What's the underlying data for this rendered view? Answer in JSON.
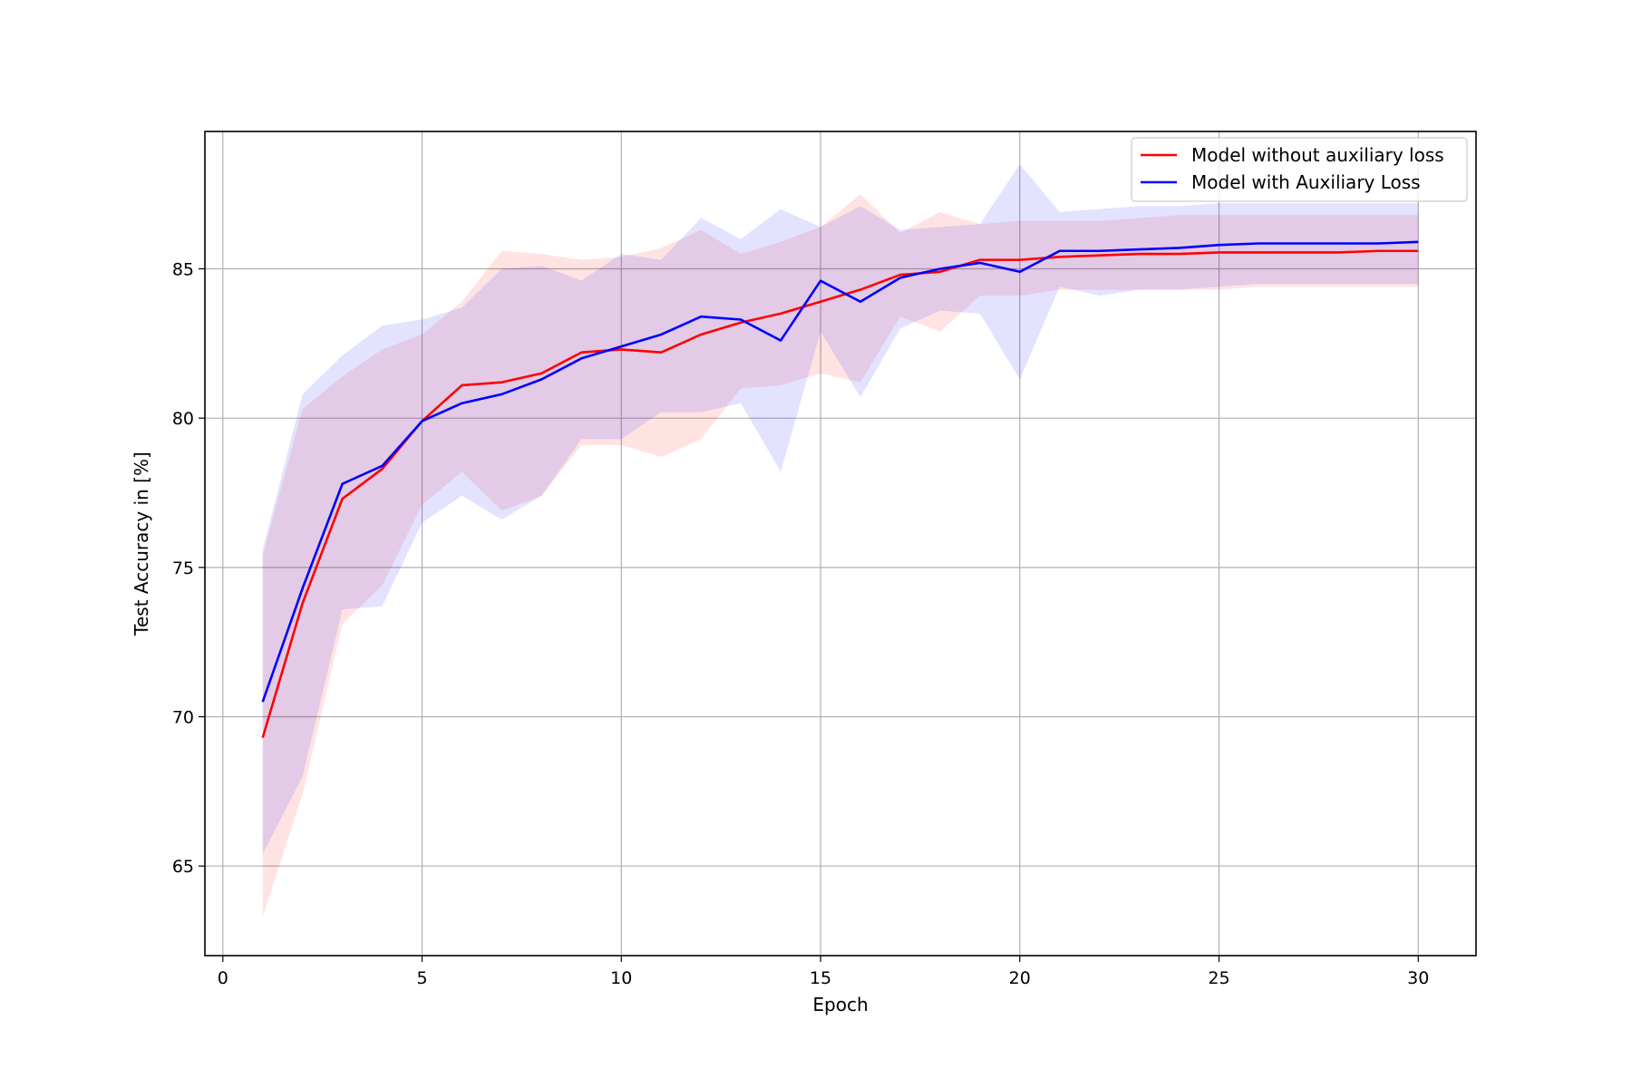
{
  "chart_data": {
    "type": "line",
    "title": "",
    "xlabel": "Epoch",
    "ylabel": "Test Accuracy in [%]",
    "xlim": [
      -0.45,
      31.45
    ],
    "ylim": [
      62.0,
      89.6
    ],
    "xticks": [
      0,
      5,
      10,
      15,
      20,
      25,
      30
    ],
    "yticks": [
      65,
      70,
      75,
      80,
      85
    ],
    "grid": true,
    "legend_position": "top-right",
    "x": [
      1,
      2,
      3,
      4,
      5,
      6,
      7,
      8,
      9,
      10,
      11,
      12,
      13,
      14,
      15,
      16,
      17,
      18,
      19,
      20,
      21,
      22,
      23,
      24,
      25,
      26,
      27,
      28,
      29,
      30
    ],
    "series": [
      {
        "name": "Model without auxiliary loss",
        "color": "#ff0000",
        "band_color": "#ff0000",
        "values": [
          69.3,
          73.8,
          77.3,
          78.3,
          79.9,
          81.1,
          81.2,
          81.5,
          82.2,
          82.3,
          82.2,
          82.8,
          83.2,
          83.5,
          83.9,
          84.3,
          84.8,
          84.9,
          85.3,
          85.3,
          85.4,
          85.45,
          85.5,
          85.5,
          85.55,
          85.55,
          85.55,
          85.55,
          85.6,
          85.6
        ],
        "upper": [
          75.4,
          80.3,
          81.4,
          82.3,
          82.8,
          83.9,
          85.6,
          85.5,
          85.3,
          85.4,
          85.7,
          86.3,
          85.5,
          85.9,
          86.4,
          87.5,
          86.2,
          86.9,
          86.5,
          86.6,
          86.6,
          86.6,
          86.7,
          86.8,
          86.8,
          86.8,
          86.8,
          86.8,
          86.8,
          86.8
        ],
        "lower": [
          63.3,
          67.4,
          73.1,
          74.4,
          77.1,
          78.2,
          76.9,
          77.4,
          79.1,
          79.1,
          78.7,
          79.3,
          81.0,
          81.1,
          81.5,
          81.2,
          83.4,
          82.9,
          84.1,
          84.1,
          84.3,
          84.3,
          84.3,
          84.3,
          84.3,
          84.4,
          84.4,
          84.4,
          84.4,
          84.4
        ]
      },
      {
        "name": "Model with Auxiliary Loss",
        "color": "#0000ff",
        "band_color": "#0000ff",
        "values": [
          70.5,
          74.3,
          77.8,
          78.4,
          79.9,
          80.5,
          80.8,
          81.3,
          82.0,
          82.4,
          82.8,
          83.4,
          83.3,
          82.6,
          84.6,
          83.9,
          84.7,
          85.0,
          85.2,
          84.9,
          85.6,
          85.6,
          85.65,
          85.7,
          85.8,
          85.85,
          85.85,
          85.85,
          85.85,
          85.9
        ],
        "upper": [
          75.6,
          80.8,
          82.1,
          83.1,
          83.3,
          83.7,
          85.0,
          85.1,
          84.6,
          85.5,
          85.3,
          86.7,
          86.0,
          87.0,
          86.4,
          87.1,
          86.3,
          86.4,
          86.5,
          88.5,
          86.9,
          87.0,
          87.1,
          87.1,
          87.2,
          87.2,
          87.2,
          87.2,
          87.2,
          87.2
        ],
        "lower": [
          65.4,
          68.0,
          73.6,
          73.7,
          76.5,
          77.4,
          76.6,
          77.4,
          79.3,
          79.3,
          80.2,
          80.2,
          80.5,
          78.2,
          82.9,
          80.7,
          83.0,
          83.6,
          83.5,
          81.3,
          84.4,
          84.1,
          84.3,
          84.3,
          84.4,
          84.5,
          84.5,
          84.5,
          84.5,
          84.5
        ]
      }
    ]
  }
}
